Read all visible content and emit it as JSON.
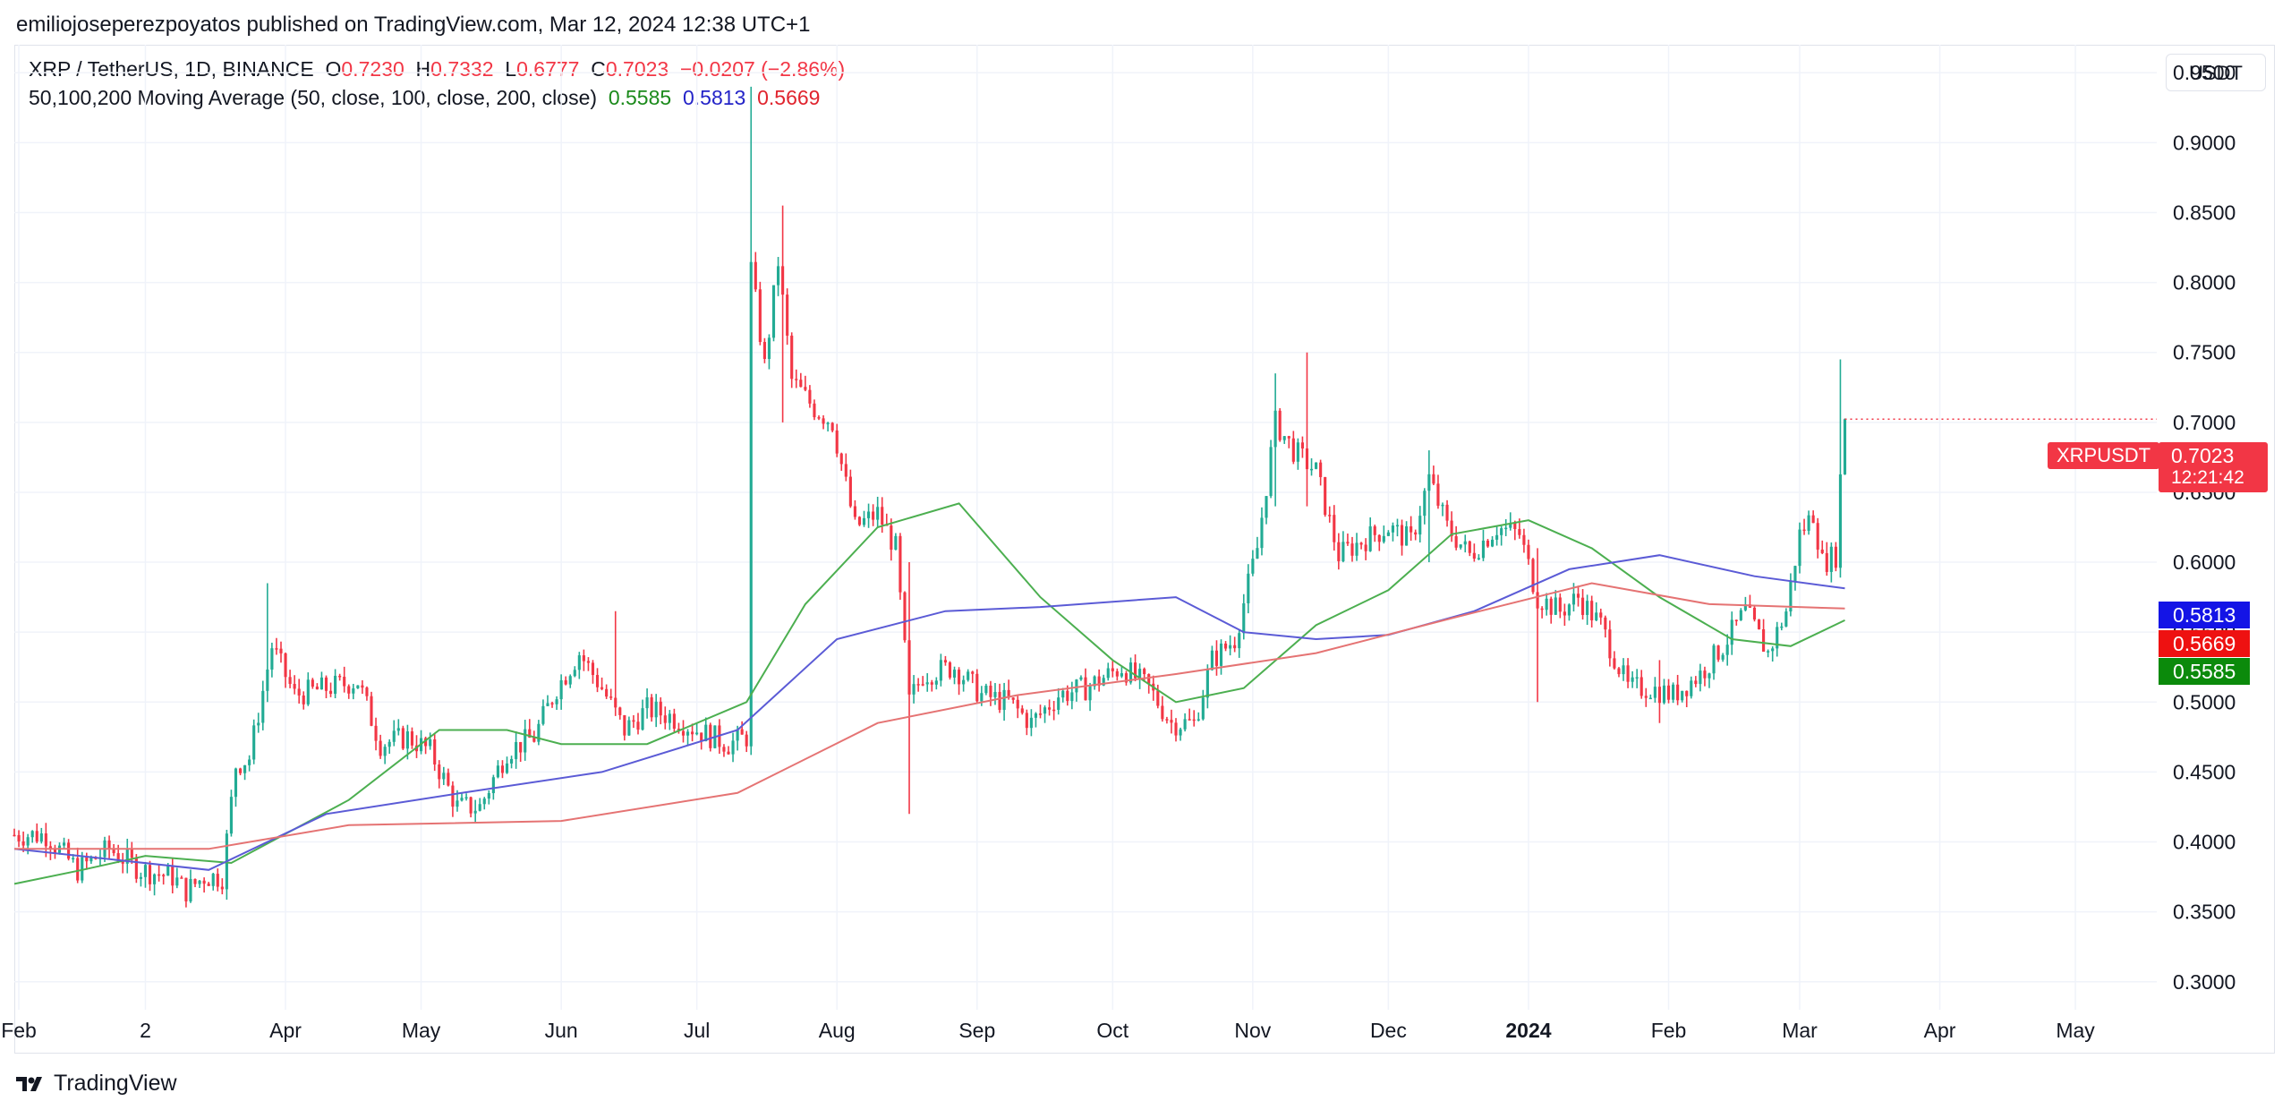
{
  "publisher_line": "emiliojoseperezpoyatos published on TradingView.com, Mar 12, 2024 12:38 UTC+1",
  "legend": {
    "symbol": "XRP / TetherUS, 1D, BINANCE",
    "o_label": "O",
    "o": "0.7230",
    "h_label": "H",
    "h": "0.7332",
    "l_label": "L",
    "l": "0.6777",
    "c_label": "C",
    "c": "0.7023",
    "change": "−0.0207 (−2.86%)",
    "ma_label": "50,100,200 Moving Average (50, close, 100, close, 200, close)",
    "ma50": "0.5585",
    "ma100": "0.5813",
    "ma200": "0.5669"
  },
  "currency_button": "USDT",
  "price_tag": {
    "symbol": "XRPUSDT",
    "price": "0.7023",
    "countdown": "12:21:42"
  },
  "ma_tags": {
    "ma100": "0.5813",
    "ma200": "0.5669",
    "ma50": "0.5585"
  },
  "brand": "TradingView",
  "colors": {
    "up": "#22ab94",
    "down": "#f23645",
    "ma50": "#4caf50",
    "ma100": "#5b5bd6",
    "ma200": "#e57373",
    "grid": "#f0f3fa"
  },
  "chart_data": {
    "type": "candlestick",
    "x_ticks": [
      "Feb",
      "2",
      "Apr",
      "May",
      "Jun",
      "Jul",
      "Aug",
      "Sep",
      "Oct",
      "Nov",
      "Dec",
      "2024",
      "Feb",
      "Mar",
      "Apr",
      "May"
    ],
    "y_ticks": [
      "0.9500",
      "0.9000",
      "0.8500",
      "0.8000",
      "0.7500",
      "0.7000",
      "0.6500",
      "0.6000",
      "0.5500",
      "0.5000",
      "0.4500",
      "0.4000",
      "0.3500",
      "0.3000"
    ],
    "ylim": [
      0.28,
      0.97
    ],
    "x_range": [
      "2023-01-31",
      "2024-05-19"
    ],
    "grid": true,
    "close_path": [
      [
        "2023-01-31",
        0.405
      ],
      [
        "2023-02-07",
        0.405
      ],
      [
        "2023-02-14",
        0.38
      ],
      [
        "2023-02-21",
        0.395
      ],
      [
        "2023-02-28",
        0.38
      ],
      [
        "2023-03-07",
        0.375
      ],
      [
        "2023-03-10",
        0.365
      ],
      [
        "2023-03-14",
        0.375
      ],
      [
        "2023-03-18",
        0.375
      ],
      [
        "2023-03-21",
        0.455
      ],
      [
        "2023-03-24",
        0.46
      ],
      [
        "2023-03-29",
        0.54
      ],
      [
        "2023-04-03",
        0.505
      ],
      [
        "2023-04-10",
        0.51
      ],
      [
        "2023-04-17",
        0.515
      ],
      [
        "2023-04-22",
        0.47
      ],
      [
        "2023-04-28",
        0.475
      ],
      [
        "2023-05-03",
        0.465
      ],
      [
        "2023-05-09",
        0.425
      ],
      [
        "2023-05-14",
        0.425
      ],
      [
        "2023-05-20",
        0.465
      ],
      [
        "2023-05-26",
        0.475
      ],
      [
        "2023-05-31",
        0.51
      ],
      [
        "2023-06-05",
        0.535
      ],
      [
        "2023-06-10",
        0.51
      ],
      [
        "2023-06-15",
        0.48
      ],
      [
        "2023-06-20",
        0.495
      ],
      [
        "2023-06-25",
        0.49
      ],
      [
        "2023-07-01",
        0.48
      ],
      [
        "2023-07-08",
        0.47
      ],
      [
        "2023-07-12",
        0.475
      ],
      [
        "2023-07-13",
        0.81
      ],
      [
        "2023-07-16",
        0.74
      ],
      [
        "2023-07-19",
        0.815
      ],
      [
        "2023-07-22",
        0.73
      ],
      [
        "2023-07-27",
        0.71
      ],
      [
        "2023-07-31",
        0.7
      ],
      [
        "2023-08-05",
        0.625
      ],
      [
        "2023-08-10",
        0.635
      ],
      [
        "2023-08-14",
        0.61
      ],
      [
        "2023-08-17",
        0.5
      ],
      [
        "2023-08-20",
        0.52
      ],
      [
        "2023-08-27",
        0.525
      ],
      [
        "2023-09-02",
        0.505
      ],
      [
        "2023-09-08",
        0.5
      ],
      [
        "2023-09-13",
        0.485
      ],
      [
        "2023-09-19",
        0.505
      ],
      [
        "2023-09-25",
        0.51
      ],
      [
        "2023-10-03",
        0.525
      ],
      [
        "2023-10-09",
        0.51
      ],
      [
        "2023-10-14",
        0.485
      ],
      [
        "2023-10-19",
        0.485
      ],
      [
        "2023-10-23",
        0.53
      ],
      [
        "2023-10-28",
        0.545
      ],
      [
        "2023-11-02",
        0.61
      ],
      [
        "2023-11-06",
        0.7
      ],
      [
        "2023-11-10",
        0.68
      ],
      [
        "2023-11-15",
        0.665
      ],
      [
        "2023-11-20",
        0.605
      ],
      [
        "2023-11-25",
        0.615
      ],
      [
        "2023-12-01",
        0.625
      ],
      [
        "2023-12-06",
        0.615
      ],
      [
        "2023-12-10",
        0.66
      ],
      [
        "2023-12-14",
        0.625
      ],
      [
        "2023-12-19",
        0.605
      ],
      [
        "2023-12-25",
        0.625
      ],
      [
        "2023-12-30",
        0.62
      ],
      [
        "2024-01-03",
        0.575
      ],
      [
        "2024-01-08",
        0.565
      ],
      [
        "2024-01-12",
        0.575
      ],
      [
        "2024-01-17",
        0.555
      ],
      [
        "2024-01-23",
        0.51
      ],
      [
        "2024-01-28",
        0.51
      ],
      [
        "2024-02-02",
        0.505
      ],
      [
        "2024-02-08",
        0.52
      ],
      [
        "2024-02-13",
        0.54
      ],
      [
        "2024-02-18",
        0.565
      ],
      [
        "2024-02-23",
        0.535
      ],
      [
        "2024-02-27",
        0.565
      ],
      [
        "2024-03-01",
        0.62
      ],
      [
        "2024-03-04",
        0.635
      ],
      [
        "2024-03-06",
        0.6
      ],
      [
        "2024-03-09",
        0.605
      ],
      [
        "2024-03-10",
        0.66
      ],
      [
        "2024-03-11",
        0.7023
      ]
    ],
    "spikes": [
      {
        "date": "2023-03-28",
        "high": 0.585,
        "low": 0.5
      },
      {
        "date": "2023-06-13",
        "high": 0.565,
        "low": 0.49
      },
      {
        "date": "2023-07-13",
        "high": 0.94,
        "low": 0.475
      },
      {
        "date": "2023-07-20",
        "high": 0.855,
        "low": 0.7
      },
      {
        "date": "2023-08-17",
        "high": 0.6,
        "low": 0.42
      },
      {
        "date": "2023-11-06",
        "high": 0.735,
        "low": 0.64
      },
      {
        "date": "2023-11-13",
        "high": 0.75,
        "low": 0.64
      },
      {
        "date": "2023-12-10",
        "high": 0.68,
        "low": 0.6
      },
      {
        "date": "2024-01-03",
        "high": 0.61,
        "low": 0.5
      },
      {
        "date": "2024-01-30",
        "high": 0.53,
        "low": 0.485
      },
      {
        "date": "2024-03-10",
        "high": 0.745,
        "low": 0.6
      }
    ],
    "series": [
      {
        "name": "MA 50",
        "values": [
          [
            "2023-01-31",
            0.37
          ],
          [
            "2023-02-15",
            0.38
          ],
          [
            "2023-03-01",
            0.39
          ],
          [
            "2023-03-20",
            0.385
          ],
          [
            "2023-04-15",
            0.43
          ],
          [
            "2023-05-05",
            0.48
          ],
          [
            "2023-05-20",
            0.48
          ],
          [
            "2023-06-01",
            0.47
          ],
          [
            "2023-06-20",
            0.47
          ],
          [
            "2023-07-12",
            0.5
          ],
          [
            "2023-07-25",
            0.57
          ],
          [
            "2023-08-10",
            0.625
          ],
          [
            "2023-08-28",
            0.642
          ],
          [
            "2023-09-15",
            0.575
          ],
          [
            "2023-10-01",
            0.53
          ],
          [
            "2023-10-15",
            0.5
          ],
          [
            "2023-10-30",
            0.51
          ],
          [
            "2023-11-15",
            0.555
          ],
          [
            "2023-12-01",
            0.58
          ],
          [
            "2023-12-15",
            0.62
          ],
          [
            "2024-01-01",
            0.63
          ],
          [
            "2024-01-15",
            0.61
          ],
          [
            "2024-01-30",
            0.575
          ],
          [
            "2024-02-15",
            0.545
          ],
          [
            "2024-02-28",
            0.54
          ],
          [
            "2024-03-11",
            0.5585
          ]
        ]
      },
      {
        "name": "MA 100",
        "values": [
          [
            "2023-01-31",
            0.395
          ],
          [
            "2023-03-15",
            0.38
          ],
          [
            "2023-04-10",
            0.42
          ],
          [
            "2023-05-10",
            0.435
          ],
          [
            "2023-06-10",
            0.45
          ],
          [
            "2023-07-10",
            0.48
          ],
          [
            "2023-08-01",
            0.545
          ],
          [
            "2023-08-25",
            0.565
          ],
          [
            "2023-09-15",
            0.568
          ],
          [
            "2023-10-15",
            0.575
          ],
          [
            "2023-10-30",
            0.55
          ],
          [
            "2023-11-15",
            0.545
          ],
          [
            "2023-12-01",
            0.548
          ],
          [
            "2023-12-20",
            0.565
          ],
          [
            "2024-01-10",
            0.595
          ],
          [
            "2024-01-30",
            0.605
          ],
          [
            "2024-02-20",
            0.59
          ],
          [
            "2024-03-11",
            0.5813
          ]
        ]
      },
      {
        "name": "MA 200",
        "values": [
          [
            "2023-01-31",
            0.395
          ],
          [
            "2023-03-15",
            0.395
          ],
          [
            "2023-04-15",
            0.412
          ],
          [
            "2023-06-01",
            0.415
          ],
          [
            "2023-07-10",
            0.435
          ],
          [
            "2023-08-10",
            0.485
          ],
          [
            "2023-09-10",
            0.505
          ],
          [
            "2023-10-15",
            0.52
          ],
          [
            "2023-11-15",
            0.535
          ],
          [
            "2023-12-15",
            0.56
          ],
          [
            "2024-01-15",
            0.585
          ],
          [
            "2024-02-10",
            0.57
          ],
          [
            "2024-03-11",
            0.5669
          ]
        ]
      }
    ]
  }
}
